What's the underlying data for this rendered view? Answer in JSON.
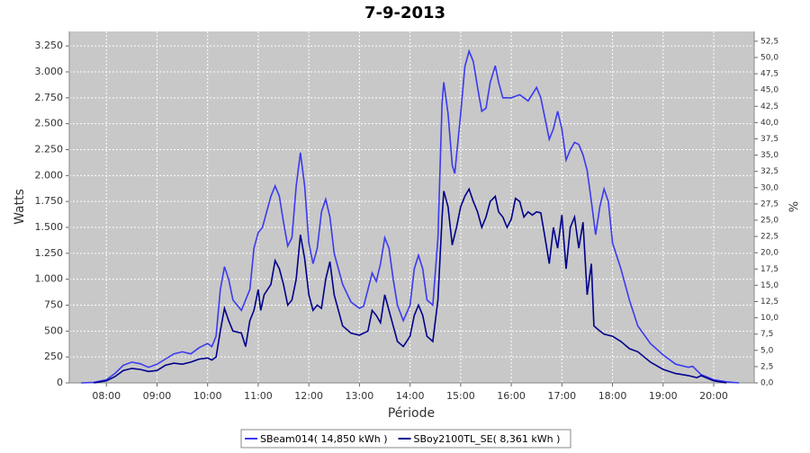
{
  "chart_data": {
    "type": "line",
    "title": "7-9-2013",
    "x_label": "Période",
    "y_label": "Watts",
    "y2_label": "%",
    "xlim": [
      "07:16",
      "20:48"
    ],
    "xticks": [
      "08:00",
      "09:00",
      "10:00",
      "11:00",
      "12:00",
      "13:00",
      "14:00",
      "15:00",
      "16:00",
      "17:00",
      "18:00",
      "19:00",
      "20:00"
    ],
    "ylim": [
      0,
      3390
    ],
    "yticks": [
      0,
      250,
      500,
      750,
      {
        "value": 1000,
        "label": "1.000"
      },
      {
        "value": 1250,
        "label": "1.250"
      },
      {
        "value": 1500,
        "label": "1.500"
      },
      {
        "value": 1750,
        "label": "1.750"
      },
      {
        "value": 2000,
        "label": "2.000"
      },
      {
        "value": 2250,
        "label": "2.250"
      },
      {
        "value": 2500,
        "label": "2.500"
      },
      {
        "value": 2750,
        "label": "2.750"
      },
      {
        "value": 3000,
        "label": "3.000"
      },
      {
        "value": 3250,
        "label": "3.250"
      }
    ],
    "y2lim": [
      0,
      54
    ],
    "y2ticks": [
      {
        "value": 0,
        "label": "0,0"
      },
      {
        "value": 2.5,
        "label": "2,5"
      },
      {
        "value": 5,
        "label": "5,0"
      },
      {
        "value": 7.5,
        "label": "7,5"
      },
      {
        "value": 10,
        "label": "10,0"
      },
      {
        "value": 12.5,
        "label": "12,5"
      },
      {
        "value": 15,
        "label": "15,0"
      },
      {
        "value": 17.5,
        "label": "17,5"
      },
      {
        "value": 20,
        "label": "20,0"
      },
      {
        "value": 22.5,
        "label": "22,5"
      },
      {
        "value": 25,
        "label": "25,0"
      },
      {
        "value": 27.5,
        "label": "27,5"
      },
      {
        "value": 30,
        "label": "30,0"
      },
      {
        "value": 32.5,
        "label": "32,5"
      },
      {
        "value": 35,
        "label": "35,0"
      },
      {
        "value": 37.5,
        "label": "37,5"
      },
      {
        "value": 40,
        "label": "40,0"
      },
      {
        "value": 42.5,
        "label": "42,5"
      },
      {
        "value": 45,
        "label": "45,0"
      },
      {
        "value": 47.5,
        "label": "47,5"
      },
      {
        "value": 50,
        "label": "50,0"
      },
      {
        "value": 52.5,
        "label": "52,5"
      }
    ],
    "grid": true,
    "series": [
      {
        "name": "SBeam014( 14,850 kWh )",
        "color": "#3a3af0",
        "x": [
          "07:30",
          "07:45",
          "08:00",
          "08:10",
          "08:20",
          "08:30",
          "08:40",
          "08:50",
          "09:00",
          "09:10",
          "09:20",
          "09:30",
          "09:40",
          "09:50",
          "10:00",
          "10:05",
          "10:10",
          "10:15",
          "10:20",
          "10:25",
          "10:30",
          "10:40",
          "10:50",
          "10:55",
          "11:00",
          "11:05",
          "11:10",
          "11:15",
          "11:20",
          "11:25",
          "11:30",
          "11:35",
          "11:40",
          "11:45",
          "11:50",
          "11:55",
          "12:00",
          "12:05",
          "12:10",
          "12:15",
          "12:20",
          "12:25",
          "12:30",
          "12:40",
          "12:50",
          "13:00",
          "13:05",
          "13:10",
          "13:15",
          "13:20",
          "13:25",
          "13:30",
          "13:35",
          "13:40",
          "13:45",
          "13:52",
          "14:00",
          "14:05",
          "14:10",
          "14:15",
          "14:20",
          "14:27",
          "14:33",
          "14:38",
          "14:40",
          "14:45",
          "14:50",
          "14:53",
          "15:00",
          "15:05",
          "15:10",
          "15:15",
          "15:20",
          "15:25",
          "15:30",
          "15:35",
          "15:41",
          "15:45",
          "15:50",
          "16:00",
          "16:10",
          "16:20",
          "16:30",
          "16:35",
          "16:45",
          "16:50",
          "16:55",
          "17:00",
          "17:05",
          "17:10",
          "17:15",
          "17:20",
          "17:25",
          "17:30",
          "17:35",
          "17:40",
          "17:45",
          "17:50",
          "17:55",
          "18:00",
          "18:10",
          "18:20",
          "18:30",
          "18:45",
          "19:00",
          "19:15",
          "19:30",
          "19:35",
          "19:45",
          "20:00",
          "20:15",
          "20:30"
        ],
        "values": [
          0,
          5,
          30,
          90,
          170,
          200,
          185,
          150,
          180,
          230,
          280,
          300,
          280,
          340,
          380,
          350,
          450,
          900,
          1120,
          1000,
          800,
          700,
          900,
          1300,
          1450,
          1500,
          1650,
          1800,
          1900,
          1800,
          1550,
          1320,
          1400,
          1900,
          2220,
          1900,
          1350,
          1150,
          1300,
          1650,
          1770,
          1600,
          1250,
          950,
          780,
          720,
          740,
          900,
          1060,
          980,
          1150,
          1400,
          1300,
          1000,
          750,
          600,
          750,
          1100,
          1230,
          1100,
          800,
          750,
          1400,
          2700,
          2900,
          2600,
          2100,
          2020,
          2600,
          3050,
          3200,
          3100,
          2850,
          2620,
          2650,
          2900,
          3060,
          2900,
          2750,
          2750,
          2780,
          2720,
          2850,
          2750,
          2350,
          2450,
          2620,
          2450,
          2150,
          2250,
          2320,
          2300,
          2200,
          2050,
          1750,
          1430,
          1700,
          1870,
          1750,
          1350,
          1100,
          800,
          550,
          380,
          270,
          180,
          150,
          160,
          80,
          30,
          10,
          0
        ]
      },
      {
        "name": "SBoy2100TL_SE( 8,361 kWh )",
        "color": "#00008c",
        "x": [
          "07:45",
          "08:00",
          "08:10",
          "08:20",
          "08:30",
          "08:40",
          "08:50",
          "09:00",
          "09:10",
          "09:20",
          "09:30",
          "09:40",
          "09:50",
          "10:00",
          "10:05",
          "10:10",
          "10:15",
          "10:20",
          "10:25",
          "10:30",
          "10:40",
          "10:45",
          "10:50",
          "10:55",
          "11:00",
          "11:03",
          "11:07",
          "11:15",
          "11:20",
          "11:25",
          "11:30",
          "11:35",
          "11:40",
          "11:45",
          "11:50",
          "11:55",
          "12:00",
          "12:05",
          "12:10",
          "12:15",
          "12:20",
          "12:25",
          "12:30",
          "12:40",
          "12:50",
          "13:00",
          "13:10",
          "13:15",
          "13:20",
          "13:25",
          "13:30",
          "13:35",
          "13:40",
          "13:45",
          "13:52",
          "14:00",
          "14:05",
          "14:10",
          "14:15",
          "14:20",
          "14:27",
          "14:33",
          "14:38",
          "14:40",
          "14:45",
          "14:50",
          "14:55",
          "15:00",
          "15:05",
          "15:10",
          "15:15",
          "15:20",
          "15:25",
          "15:30",
          "15:35",
          "15:41",
          "15:45",
          "15:50",
          "15:55",
          "16:00",
          "16:05",
          "16:10",
          "16:15",
          "16:20",
          "16:25",
          "16:30",
          "16:35",
          "16:40",
          "16:45",
          "16:50",
          "16:55",
          "17:00",
          "17:05",
          "17:10",
          "17:15",
          "17:20",
          "17:25",
          "17:30",
          "17:35",
          "17:38",
          "17:45",
          "17:50",
          "18:00",
          "18:10",
          "18:20",
          "18:30",
          "18:45",
          "19:00",
          "19:15",
          "19:30",
          "19:40",
          "19:45",
          "20:00",
          "20:15"
        ],
        "values": [
          0,
          20,
          60,
          120,
          140,
          130,
          110,
          120,
          170,
          190,
          180,
          200,
          230,
          240,
          220,
          250,
          500,
          720,
          600,
          500,
          480,
          350,
          600,
          700,
          900,
          700,
          850,
          950,
          1180,
          1100,
          950,
          750,
          800,
          1000,
          1430,
          1200,
          850,
          700,
          750,
          720,
          1000,
          1170,
          850,
          550,
          480,
          460,
          500,
          700,
          650,
          580,
          850,
          700,
          550,
          400,
          350,
          450,
          650,
          750,
          650,
          450,
          400,
          800,
          1600,
          1850,
          1700,
          1330,
          1500,
          1700,
          1800,
          1870,
          1750,
          1650,
          1500,
          1600,
          1750,
          1800,
          1650,
          1600,
          1500,
          1580,
          1780,
          1750,
          1600,
          1650,
          1620,
          1650,
          1640,
          1400,
          1150,
          1500,
          1300,
          1620,
          1100,
          1500,
          1600,
          1300,
          1550,
          850,
          1150,
          550,
          500,
          470,
          450,
          400,
          330,
          300,
          200,
          130,
          90,
          70,
          50,
          70,
          20,
          0
        ]
      }
    ]
  }
}
